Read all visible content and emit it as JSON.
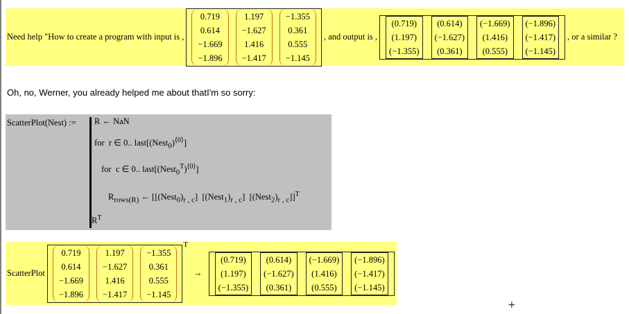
{
  "question": {
    "prefix": "Need help \"How to create a program with input is ,",
    "middle": ", and output is ,",
    "suffix": ", or a similar ?"
  },
  "input_matrix": [
    [
      "0.719",
      "0.614",
      "−1.669",
      "−1.896"
    ],
    [
      "1.197",
      "−1.627",
      "1.416",
      "−1.417"
    ],
    [
      "−1.355",
      "0.361",
      "0.555",
      "−1.145"
    ]
  ],
  "output_matrix": [
    [
      "(0.719)",
      "(1.197)",
      "(−1.355)"
    ],
    [
      "(0.614)",
      "(−1.627)",
      "(0.361)"
    ],
    [
      "(−1.669)",
      "(1.416)",
      "(0.555)"
    ],
    [
      "(−1.896)",
      "(−1.417)",
      "(−1.145)"
    ]
  ],
  "note": "Oh, no, Werner, you already helped me about thatI'm so sorry:",
  "program": {
    "definition": "ScatterPlot(Nest) :=",
    "lines": [
      "R ← NaN",
      "for  r ∈ 0.. last[(Nest<sub>0</sub>)<sup>⟨0⟩</sup>]",
      "for  c ∈ 0.. last[(Nest<sub>0</sub><sup>T</sup>)<sup>⟨0⟩</sup>]",
      "R<sub>rows(R)</sub> ← [[(Nest<sub>0</sub>)<sub>r , c</sub>]  [(Nest<sub>1</sub>)<sub>r , c</sub>]  [(Nest<sub>2</sub>)<sub>r , c</sub>]]<sup>T</sup>",
      "R<sup>T</sup>"
    ]
  },
  "evaluation": {
    "function": "ScatterPlot",
    "transpose": "T",
    "arrow": "→"
  },
  "cursor": "+"
}
